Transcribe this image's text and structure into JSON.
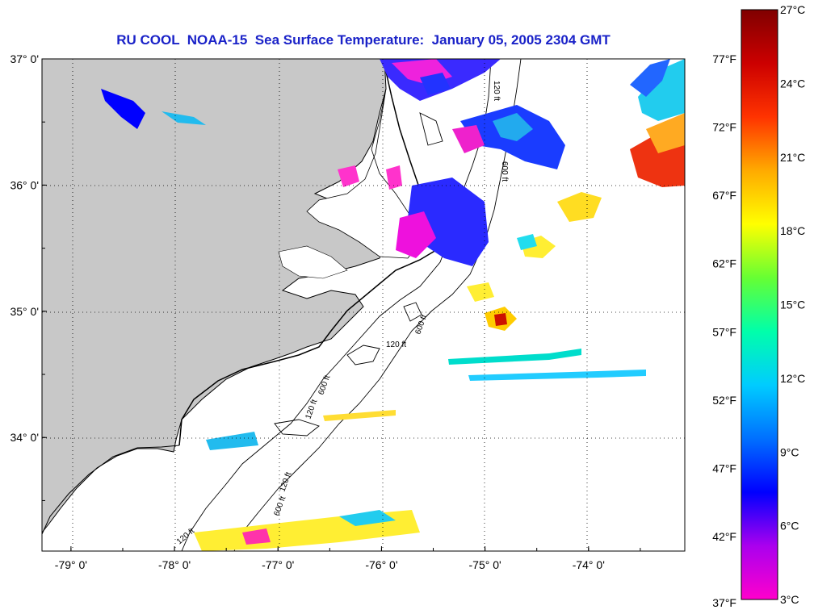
{
  "title": "RU COOL  NOAA-15  Sea Surface Temperature:  January 05, 2005 2304 GMT",
  "x_axis": {
    "ticks": [
      {
        "value": -79,
        "label": "-79° 0'"
      },
      {
        "value": -78,
        "label": "-78° 0'"
      },
      {
        "value": -77,
        "label": "-77° 0'"
      },
      {
        "value": -76,
        "label": "-76° 0'"
      },
      {
        "value": -75,
        "label": "-75° 0'"
      },
      {
        "value": -74,
        "label": "-74° 0'"
      }
    ],
    "range": [
      -79.28,
      -73.07
    ]
  },
  "y_axis": {
    "ticks": [
      {
        "value": 37,
        "label": "37° 0'"
      },
      {
        "value": 36,
        "label": "36° 0'"
      },
      {
        "value": 35,
        "label": "35° 0'"
      },
      {
        "value": 34,
        "label": "34° 0'"
      }
    ],
    "range": [
      33.1,
      37.0
    ]
  },
  "colorbar": {
    "celsius": [
      {
        "value": 27,
        "label": "27°C"
      },
      {
        "value": 24,
        "label": "24°C"
      },
      {
        "value": 21,
        "label": "21°C"
      },
      {
        "value": 18,
        "label": "18°C"
      },
      {
        "value": 15,
        "label": "15°C"
      },
      {
        "value": 12,
        "label": "12°C"
      },
      {
        "value": 9,
        "label": "9°C"
      },
      {
        "value": 6,
        "label": "6°C"
      },
      {
        "value": 3,
        "label": "3°C"
      }
    ],
    "fahrenheit": [
      {
        "value": 77,
        "label": "77°F"
      },
      {
        "value": 72,
        "label": "72°F"
      },
      {
        "value": 67,
        "label": "67°F"
      },
      {
        "value": 62,
        "label": "62°F"
      },
      {
        "value": 57,
        "label": "57°F"
      },
      {
        "value": 52,
        "label": "52°F"
      },
      {
        "value": 47,
        "label": "47°F"
      },
      {
        "value": 42,
        "label": "42°F"
      },
      {
        "value": 37,
        "label": "37°F"
      }
    ],
    "range_c": [
      3,
      27
    ],
    "stops": [
      "#ff00cc",
      "#aa00ee",
      "#0000ff",
      "#0070ff",
      "#00ccff",
      "#00ffaa",
      "#66ff33",
      "#ffff00",
      "#ffaa00",
      "#ff3300",
      "#cc0000",
      "#800000"
    ]
  },
  "contour_labels": [
    "120 ft",
    "600 ft",
    "120 ft",
    "600 ft",
    "120 ft",
    "600 ft",
    "120 ft",
    "600 ft",
    "120 ft"
  ],
  "colors": {
    "land": "#c8c8c8",
    "title": "#1a22c8",
    "grid": "#000000"
  }
}
